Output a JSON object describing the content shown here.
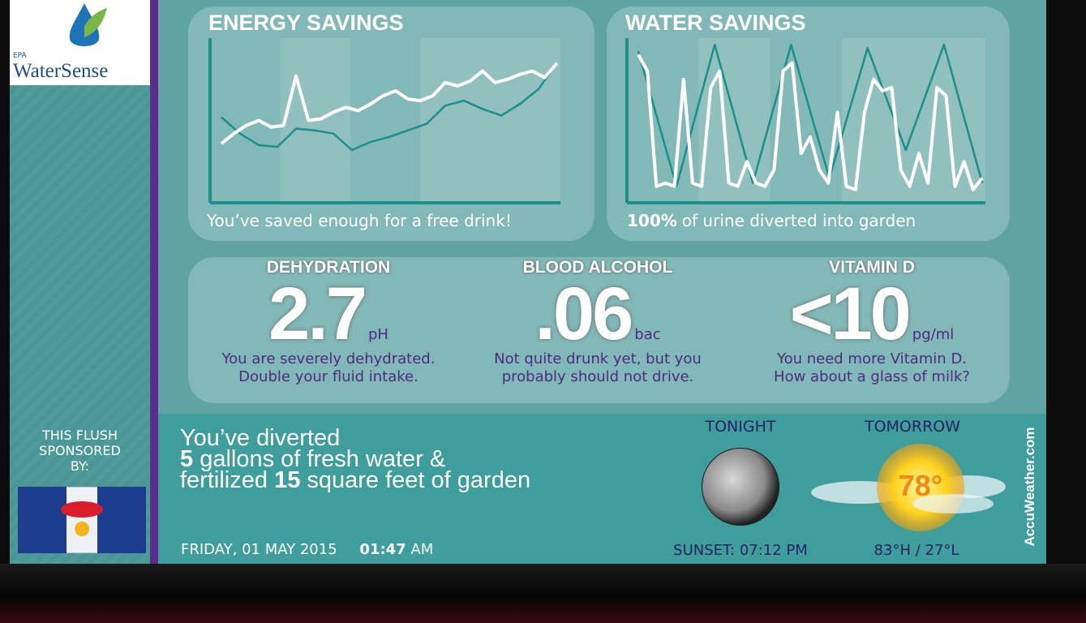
{
  "sidebar": {
    "logo_small": "EPA",
    "logo": "WaterSense",
    "sponsor_lines": [
      "THIS FLUSH",
      "SPONSORED",
      "BY:"
    ]
  },
  "chart_data": [
    {
      "type": "line",
      "title": "ENERGY SAVINGS",
      "caption": "You’ve saved enough for a free drink!",
      "ylim": [
        0,
        100
      ],
      "series": [
        {
          "color": "#ffffff",
          "values": [
            36,
            42,
            47,
            50,
            46,
            47,
            77,
            50,
            51,
            55,
            58,
            56,
            60,
            65,
            68,
            63,
            62,
            65,
            73,
            71,
            74,
            80,
            73,
            75,
            78,
            80,
            76,
            85
          ]
        },
        {
          "color": "#1a8f8c",
          "values": [
            52,
            42,
            35,
            34,
            45,
            44,
            42,
            32,
            37,
            40,
            44,
            48,
            59,
            62,
            57,
            53,
            60,
            69,
            85
          ]
        }
      ]
    },
    {
      "type": "line",
      "title": "WATER SAVINGS",
      "caption_bold": "100%",
      "caption": "of urine diverted into garden",
      "ylim": [
        0,
        100
      ],
      "series": [
        {
          "color": "#ffffff",
          "values": [
            90,
            80,
            10,
            12,
            10,
            75,
            12,
            10,
            70,
            80,
            12,
            10,
            25,
            12,
            10,
            20,
            80,
            85,
            30,
            40,
            20,
            12,
            55,
            10,
            8,
            55,
            75,
            68,
            70,
            20,
            10,
            30,
            12,
            70,
            65,
            10,
            25,
            8,
            15
          ]
        },
        {
          "color": "#1a8f8c",
          "values": [
            92,
            10,
            96,
            12,
            96,
            15,
            94,
            32,
            96,
            12
          ]
        }
      ]
    }
  ],
  "metrics": [
    {
      "label": "DEHYDRATION",
      "value": "2.7",
      "unit": "pH",
      "note": [
        "You are severely dehydrated.",
        "Double your fluid intake."
      ]
    },
    {
      "label": "BLOOD ALCOHOL",
      "value": ".06",
      "unit": "bac",
      "note": [
        "Not quite drunk yet, but you",
        "probably should not drive."
      ]
    },
    {
      "label": "VITAMIN D",
      "value": "<10",
      "unit": "pg/ml",
      "note": [
        "You need more Vitamin D.",
        "How about a glass of milk?"
      ]
    }
  ],
  "diverted": {
    "intro": "You’ve diverted",
    "gallons": "5",
    "gallons_text": "gallons of fresh water &",
    "fertilized": "fertilized",
    "area": "15",
    "area_text": "square feet of garden"
  },
  "clock": {
    "date": "FRIDAY, 01 MAY 2015",
    "time": "01:47",
    "ampm": "AM"
  },
  "weather": {
    "tonight": "TONIGHT",
    "tomorrow": "TOMORROW",
    "temp": "78°",
    "sunset": "SUNSET: 07:12 PM",
    "hilo": "83°H / 27°L",
    "brand": "AccuWeather.com"
  }
}
